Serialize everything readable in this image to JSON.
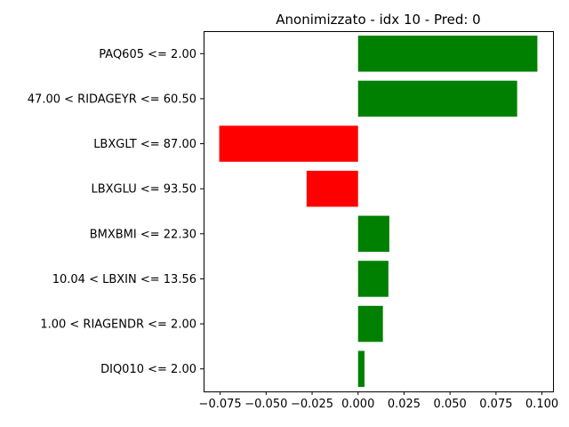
{
  "chart_data": {
    "type": "bar",
    "orientation": "horizontal",
    "title": "Anonimizzato - idx 10 - Pred: 0",
    "xlabel": "",
    "ylabel": "",
    "categories": [
      "PAQ605 <= 2.00",
      "47.00 < RIDAGEYR <= 60.50",
      "LBXGLT <= 87.00",
      "LBXGLU <= 93.50",
      "BMXBMI <= 22.30",
      "10.04 < LBXIN <= 13.56",
      "1.00 < RIAGENDR <= 2.00",
      "DIQ010 <= 2.00"
    ],
    "values": [
      0.0975,
      0.0865,
      -0.0755,
      -0.028,
      0.017,
      0.0165,
      0.0135,
      0.0035
    ],
    "colors": {
      "positive": "#008000",
      "negative": "#ff0000"
    },
    "xlim": [
      -0.084,
      0.106
    ],
    "xticks": [
      -0.075,
      -0.05,
      -0.025,
      0.0,
      0.025,
      0.05,
      0.075,
      0.1
    ],
    "xtick_labels": [
      "−0.075",
      "−0.050",
      "−0.025",
      "0.000",
      "0.025",
      "0.050",
      "0.075",
      "0.100"
    ],
    "grid": false,
    "legend": "none"
  }
}
